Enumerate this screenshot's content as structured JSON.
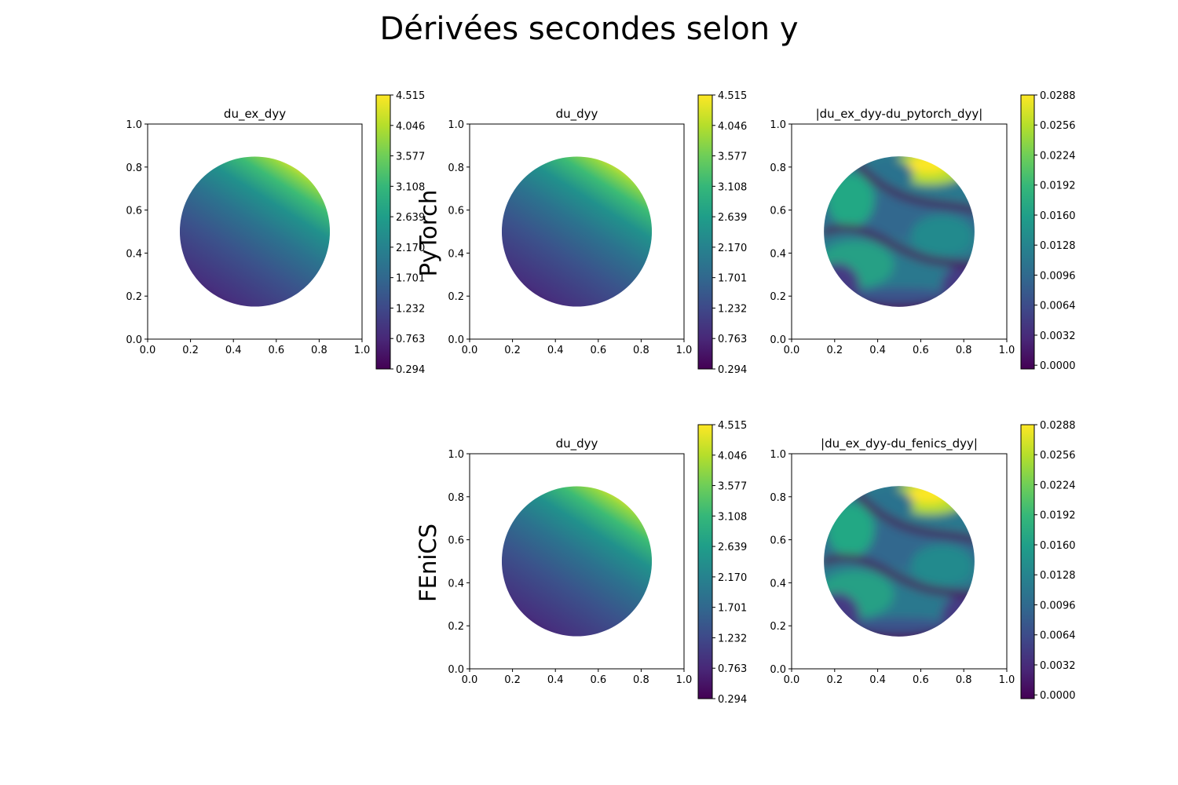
{
  "figure": {
    "title": "Dérivées secondes selon y",
    "row_labels": [
      "PyTorch",
      "FEniCS"
    ]
  },
  "colormap": {
    "name": "viridis",
    "stops": [
      "#440154",
      "#482878",
      "#3e4989",
      "#31688e",
      "#26828e",
      "#1f9e89",
      "#35b779",
      "#6ece58",
      "#b5de2b",
      "#fde725"
    ]
  },
  "chart_data": [
    {
      "type": "heatmap",
      "title": "du_ex_dyy",
      "field": "derivative",
      "xlim": [
        0,
        1
      ],
      "ylim": [
        0,
        1
      ],
      "xticks": [
        "0.0",
        "0.2",
        "0.4",
        "0.6",
        "0.8",
        "1.0"
      ],
      "yticks": [
        "0.0",
        "0.2",
        "0.4",
        "0.6",
        "0.8",
        "1.0"
      ],
      "domain": {
        "shape": "disk",
        "center": [
          0.5,
          0.5
        ],
        "radius": 0.35
      },
      "colorbar": {
        "min": 0.294,
        "max": 4.515,
        "ticks": [
          "0.294",
          "0.763",
          "1.232",
          "1.701",
          "2.170",
          "2.639",
          "3.108",
          "3.577",
          "4.046",
          "4.515"
        ]
      }
    },
    {
      "type": "heatmap",
      "title": "du_dyy",
      "field": "derivative",
      "xlim": [
        0,
        1
      ],
      "ylim": [
        0,
        1
      ],
      "xticks": [
        "0.0",
        "0.2",
        "0.4",
        "0.6",
        "0.8",
        "1.0"
      ],
      "yticks": [
        "0.0",
        "0.2",
        "0.4",
        "0.6",
        "0.8",
        "1.0"
      ],
      "domain": {
        "shape": "disk",
        "center": [
          0.5,
          0.5
        ],
        "radius": 0.35
      },
      "colorbar": {
        "min": 0.294,
        "max": 4.515,
        "ticks": [
          "0.294",
          "0.763",
          "1.232",
          "1.701",
          "2.170",
          "2.639",
          "3.108",
          "3.577",
          "4.046",
          "4.515"
        ]
      }
    },
    {
      "type": "heatmap",
      "title": "|du_ex_dyy-du_pytorch_dyy|",
      "field": "error",
      "xlim": [
        0,
        1
      ],
      "ylim": [
        0,
        1
      ],
      "xticks": [
        "0.0",
        "0.2",
        "0.4",
        "0.6",
        "0.8",
        "1.0"
      ],
      "yticks": [
        "0.0",
        "0.2",
        "0.4",
        "0.6",
        "0.8",
        "1.0"
      ],
      "domain": {
        "shape": "disk",
        "center": [
          0.5,
          0.5
        ],
        "radius": 0.35
      },
      "colorbar": {
        "min": -0.0004,
        "max": 0.0288,
        "ticks": [
          "0.0000",
          "0.0032",
          "0.0064",
          "0.0096",
          "0.0128",
          "0.0160",
          "0.0192",
          "0.0224",
          "0.0256",
          "0.0288"
        ]
      }
    },
    {
      "type": "heatmap",
      "title": "du_dyy",
      "field": "derivative",
      "xlim": [
        0,
        1
      ],
      "ylim": [
        0,
        1
      ],
      "xticks": [
        "0.0",
        "0.2",
        "0.4",
        "0.6",
        "0.8",
        "1.0"
      ],
      "yticks": [
        "0.0",
        "0.2",
        "0.4",
        "0.6",
        "0.8",
        "1.0"
      ],
      "domain": {
        "shape": "disk",
        "center": [
          0.5,
          0.5
        ],
        "radius": 0.35
      },
      "colorbar": {
        "min": 0.294,
        "max": 4.515,
        "ticks": [
          "0.294",
          "0.763",
          "1.232",
          "1.701",
          "2.170",
          "2.639",
          "3.108",
          "3.577",
          "4.046",
          "4.515"
        ]
      }
    },
    {
      "type": "heatmap",
      "title": "|du_ex_dyy-du_fenics_dyy|",
      "field": "error",
      "xlim": [
        0,
        1
      ],
      "ylim": [
        0,
        1
      ],
      "xticks": [
        "0.0",
        "0.2",
        "0.4",
        "0.6",
        "0.8",
        "1.0"
      ],
      "yticks": [
        "0.0",
        "0.2",
        "0.4",
        "0.6",
        "0.8",
        "1.0"
      ],
      "domain": {
        "shape": "disk",
        "center": [
          0.5,
          0.5
        ],
        "radius": 0.35
      },
      "colorbar": {
        "min": -0.0004,
        "max": 0.0288,
        "ticks": [
          "0.0000",
          "0.0032",
          "0.0064",
          "0.0096",
          "0.0128",
          "0.0160",
          "0.0192",
          "0.0224",
          "0.0256",
          "0.0288"
        ]
      }
    }
  ]
}
